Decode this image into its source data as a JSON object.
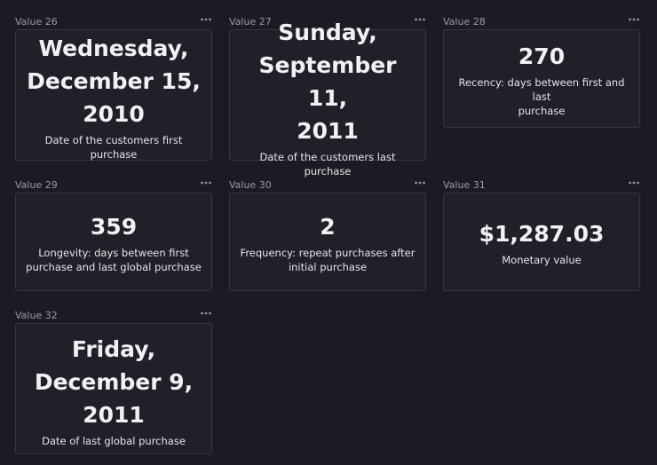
{
  "tiles": [
    {
      "title": "Value 26",
      "value": "Wednesday,\nDecember 15,\n2010",
      "caption": "Date of the customers first purchase"
    },
    {
      "title": "Value 27",
      "value": "Sunday,\nSeptember 11,\n2011",
      "caption": "Date of the customers last purchase"
    },
    {
      "title": "Value 28",
      "value": "270",
      "caption": "Recency: days between first and last\npurchase"
    },
    {
      "title": "Value 29",
      "value": "359",
      "caption": "Longevity: days between first\npurchase and last global purchase"
    },
    {
      "title": "Value 30",
      "value": "2",
      "caption": "Frequency: repeat purchases after\ninitial purchase"
    },
    {
      "title": "Value 31",
      "value": "$1,287.03",
      "caption": "Monetary value"
    },
    {
      "title": "Value 32",
      "value": "Friday,\nDecember 9,\n2011",
      "caption": "Date of last global purchase"
    }
  ],
  "icons": {
    "menu": "more-horizontal-icon"
  },
  "colors": {
    "background": "#1b1c23",
    "card": "#1f2028",
    "border": "#353640",
    "text": "#f1f1f3",
    "muted": "#9a9ba3"
  }
}
